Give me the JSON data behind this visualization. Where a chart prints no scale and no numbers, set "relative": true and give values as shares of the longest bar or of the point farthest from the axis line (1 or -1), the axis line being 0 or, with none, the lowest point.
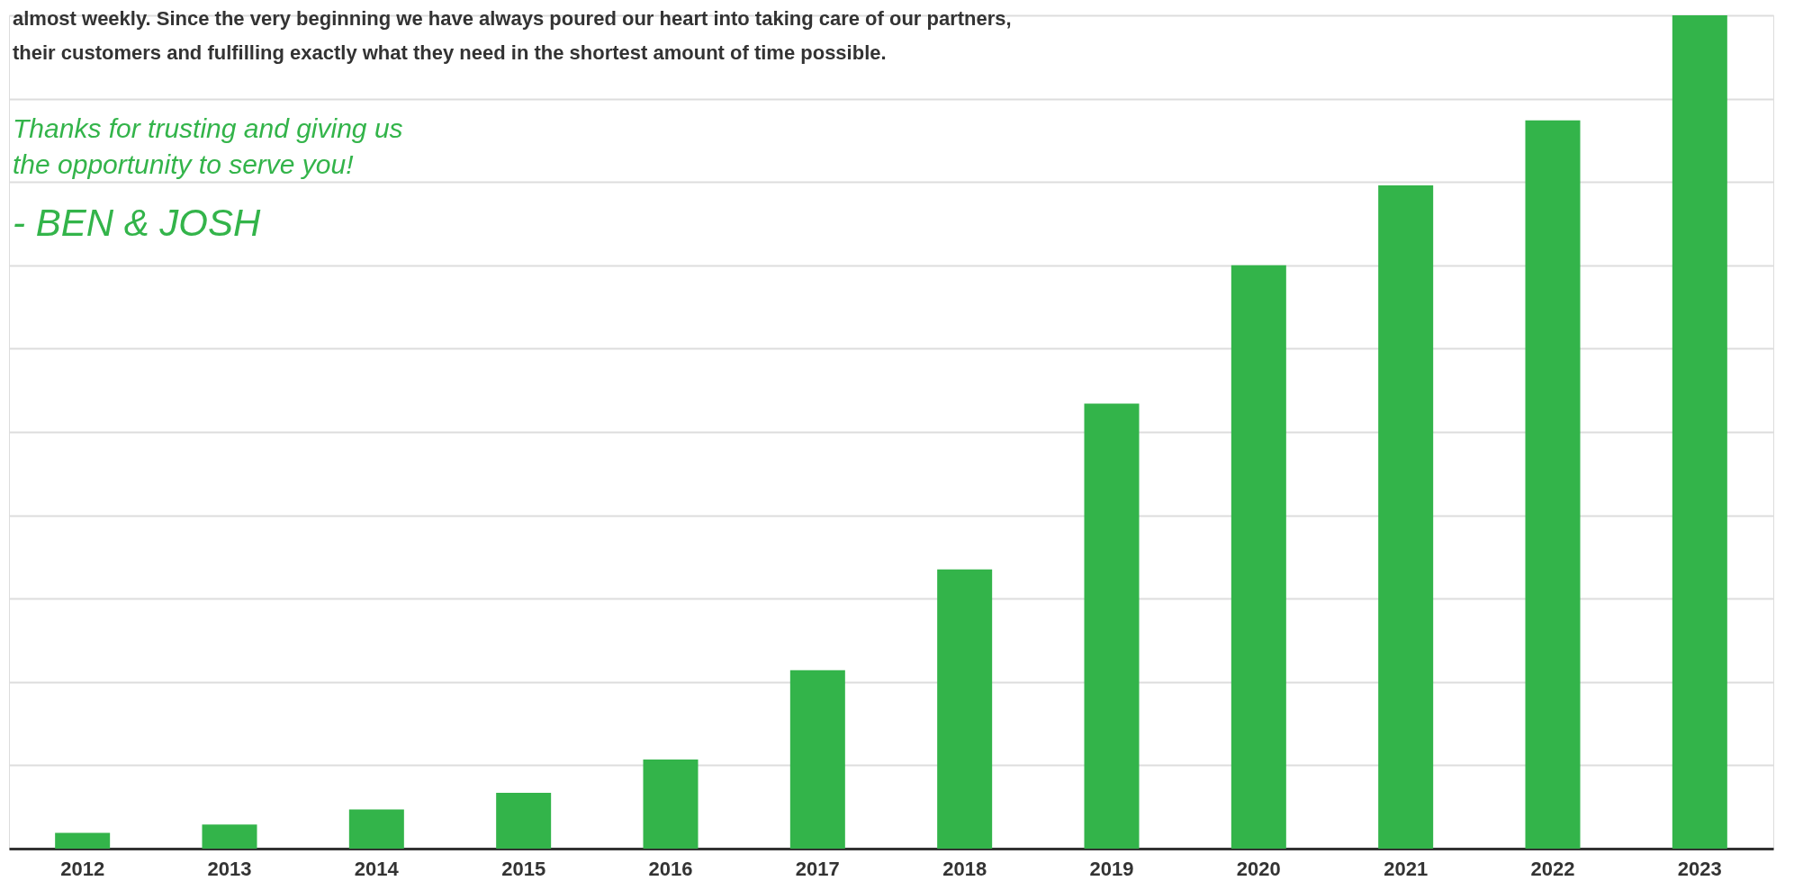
{
  "chart_data": {
    "type": "bar",
    "relative": true,
    "grid": "y",
    "color": "#33b44a",
    "categories": [
      "2012",
      "2013",
      "2014",
      "2015",
      "2016",
      "2017",
      "2018",
      "2019",
      "2020",
      "2021",
      "2022",
      "2023"
    ],
    "values": [
      0.019,
      0.029,
      0.047,
      0.067,
      0.107,
      0.214,
      0.335,
      0.534,
      0.7,
      0.796,
      0.874,
      1
    ],
    "annotations": [
      "almost weekly. Since the very beginning we have always poured our heart into taking care of our partners,",
      "their customers and fulfilling exactly what they need in the shortest amount of time possible.",
      "Thanks for trusting and giving us",
      "the opportunity to serve you!",
      "- BEN & JOSH"
    ]
  }
}
